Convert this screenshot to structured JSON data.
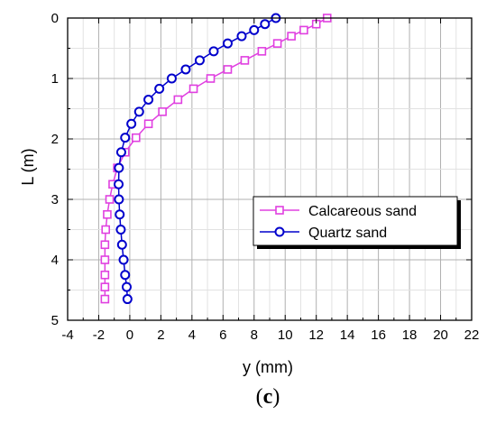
{
  "chart_data": {
    "type": "line",
    "xlabel": "y (mm)",
    "ylabel": "L (m)",
    "panel_label_open": "(",
    "panel_label_letter": "c",
    "panel_label_close": ")",
    "xlim": [
      -4,
      22
    ],
    "ylim": [
      0,
      5
    ],
    "y_inverted": true,
    "x_axis_position": "bottom",
    "y_axis_position": "left",
    "x_ticks": [
      -4,
      -2,
      0,
      2,
      4,
      6,
      8,
      10,
      12,
      14,
      16,
      18,
      20,
      22
    ],
    "y_ticks": [
      0,
      1,
      2,
      3,
      4,
      5
    ],
    "x_tick_labels": [
      "-4",
      "-2",
      "0",
      "2",
      "4",
      "6",
      "8",
      "10",
      "12",
      "14",
      "16",
      "18",
      "20",
      "22"
    ],
    "y_tick_labels": [
      "0",
      "1",
      "2",
      "3",
      "4",
      "5"
    ],
    "grid": true,
    "legend_position": "right-middle",
    "series": [
      {
        "name": "Calcareous sand",
        "marker": "square",
        "color": "#e040e0",
        "x": [
          12.7,
          12.0,
          11.2,
          10.4,
          9.5,
          8.5,
          7.4,
          6.3,
          5.2,
          4.1,
          3.1,
          2.1,
          1.2,
          0.4,
          -0.3,
          -0.8,
          -1.1,
          -1.3,
          -1.45,
          -1.55,
          -1.6,
          -1.6,
          -1.6,
          -1.6,
          -1.6
        ],
        "y": [
          0.0,
          0.1,
          0.2,
          0.3,
          0.42,
          0.55,
          0.7,
          0.85,
          1.0,
          1.17,
          1.35,
          1.55,
          1.75,
          1.98,
          2.22,
          2.48,
          2.75,
          3.0,
          3.25,
          3.5,
          3.75,
          4.0,
          4.25,
          4.45,
          4.65
        ]
      },
      {
        "name": "Quartz sand",
        "marker": "circle",
        "color": "#0000cc",
        "x": [
          9.4,
          8.7,
          8.0,
          7.2,
          6.3,
          5.4,
          4.5,
          3.6,
          2.7,
          1.9,
          1.2,
          0.6,
          0.1,
          -0.3,
          -0.55,
          -0.7,
          -0.72,
          -0.7,
          -0.65,
          -0.58,
          -0.5,
          -0.4,
          -0.3,
          -0.2,
          -0.15
        ],
        "y": [
          0.0,
          0.1,
          0.2,
          0.3,
          0.42,
          0.55,
          0.7,
          0.85,
          1.0,
          1.17,
          1.35,
          1.55,
          1.75,
          1.98,
          2.22,
          2.48,
          2.75,
          3.0,
          3.25,
          3.5,
          3.75,
          4.0,
          4.25,
          4.45,
          4.65
        ]
      }
    ]
  }
}
